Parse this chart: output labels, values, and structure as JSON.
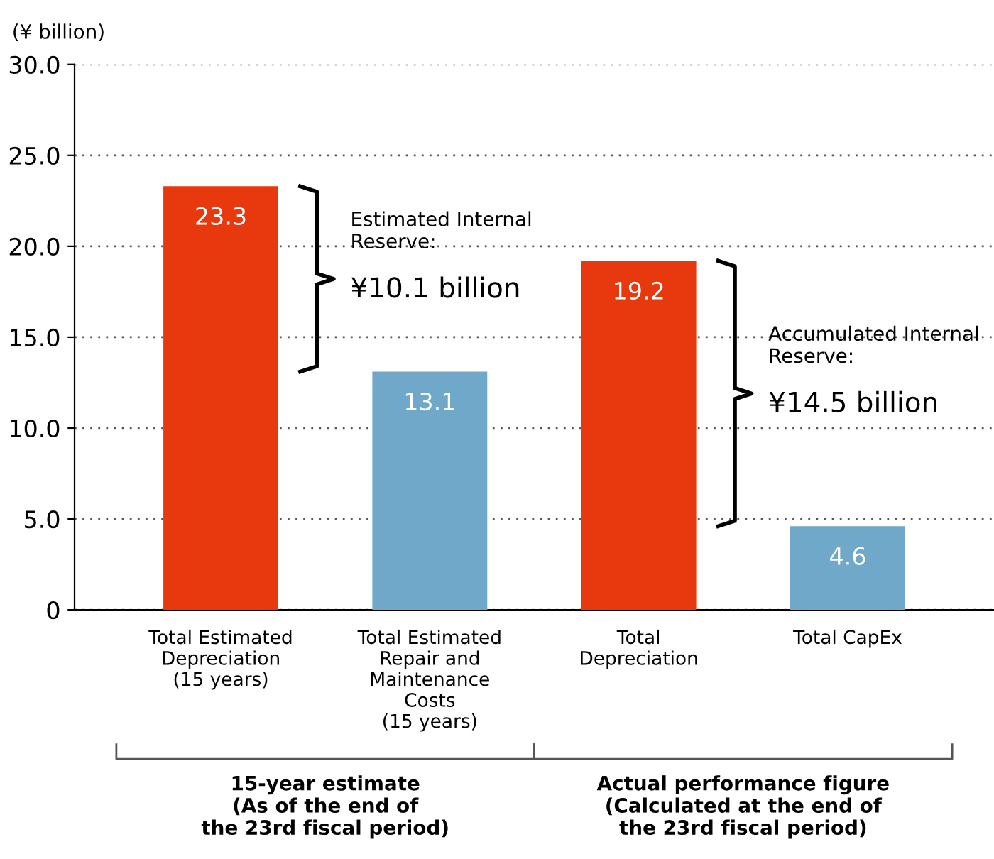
{
  "chart_data": {
    "type": "bar",
    "ylabel": "(¥ billion)",
    "categories": [
      "Total Estimated\nDepreciation\n(15 years)",
      "Total Estimated\nRepair and\nMaintenance\nCosts\n(15 years)",
      "Total\nDepreciation",
      "Total CapEx"
    ],
    "values": [
      23.3,
      13.1,
      19.2,
      4.6
    ],
    "colors": [
      "#e8380d",
      "#6fa8c8",
      "#e8380d",
      "#6fa8c8"
    ],
    "data_labels": true,
    "ylim": [
      0,
      30
    ],
    "yticks": [
      0,
      {
        "value": 5,
        "label": "5.0"
      },
      {
        "value": 10,
        "label": "10.0"
      },
      {
        "value": 15,
        "label": "15.0"
      },
      {
        "value": 20,
        "label": "20.0"
      },
      {
        "value": 25,
        "label": "25.0"
      },
      {
        "value": 30,
        "label": "30.0"
      }
    ],
    "grid": "y",
    "annotations": [
      "Estimated Internal\nReserve:",
      "¥10.1 billion",
      "Accumulated Internal\nReserve:",
      "¥14.5 billion",
      "15-year estimate\n(As of the end of\nthe 23rd fiscal period)",
      "Actual performance figure\n(Calculated at the end of\nthe 23rd fiscal period)"
    ]
  }
}
